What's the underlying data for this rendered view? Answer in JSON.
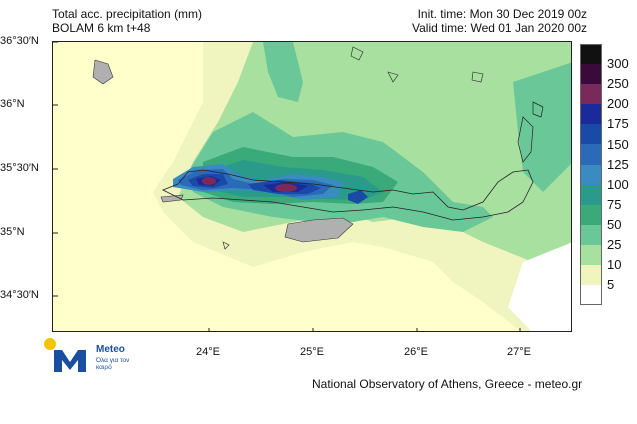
{
  "header": {
    "title": "Total acc. precipitation (mm)",
    "model": "BOLAM 6 km t+48",
    "init_time": "Init. time: Mon 30 Dec 2019 00z",
    "valid_time": "Valid time: Wed 01 Jan 2020 00z"
  },
  "map": {
    "lat_labels": [
      "36°30′N",
      "36°N",
      "35°30′N",
      "35°N",
      "34°30′N"
    ],
    "lon_labels": [
      "24°E",
      "25°E",
      "26°E",
      "27°E"
    ]
  },
  "legend": {
    "levels": [
      "300",
      "250",
      "200",
      "175",
      "150",
      "125",
      "100",
      "75",
      "50",
      "25",
      "10",
      "5"
    ],
    "colors": [
      "#111111",
      "#3a0a3a",
      "#7a2a5a",
      "#1a2a9a",
      "#1a4aa8",
      "#2a6ab8",
      "#3a8cc0",
      "#2a9a8a",
      "#3aaa7a",
      "#6ac898",
      "#a8e0a0",
      "#f0f5c0",
      "#ffffff"
    ]
  },
  "logo": {
    "name": "Meteo",
    "tagline": "Όλα για τον καιρό"
  },
  "footer": {
    "credit": "National Observatory of Athens, Greece - meteo.gr"
  }
}
